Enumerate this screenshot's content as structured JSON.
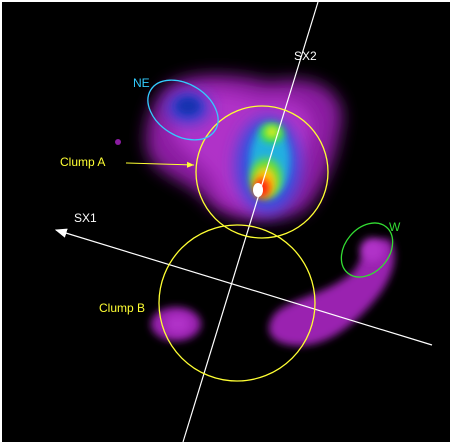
{
  "labels": {
    "ne": "NE",
    "sx2": "SX2",
    "clump_a": "Clump A",
    "sx1": "SX1",
    "w": "W",
    "clump_b": "Clump B"
  }
}
